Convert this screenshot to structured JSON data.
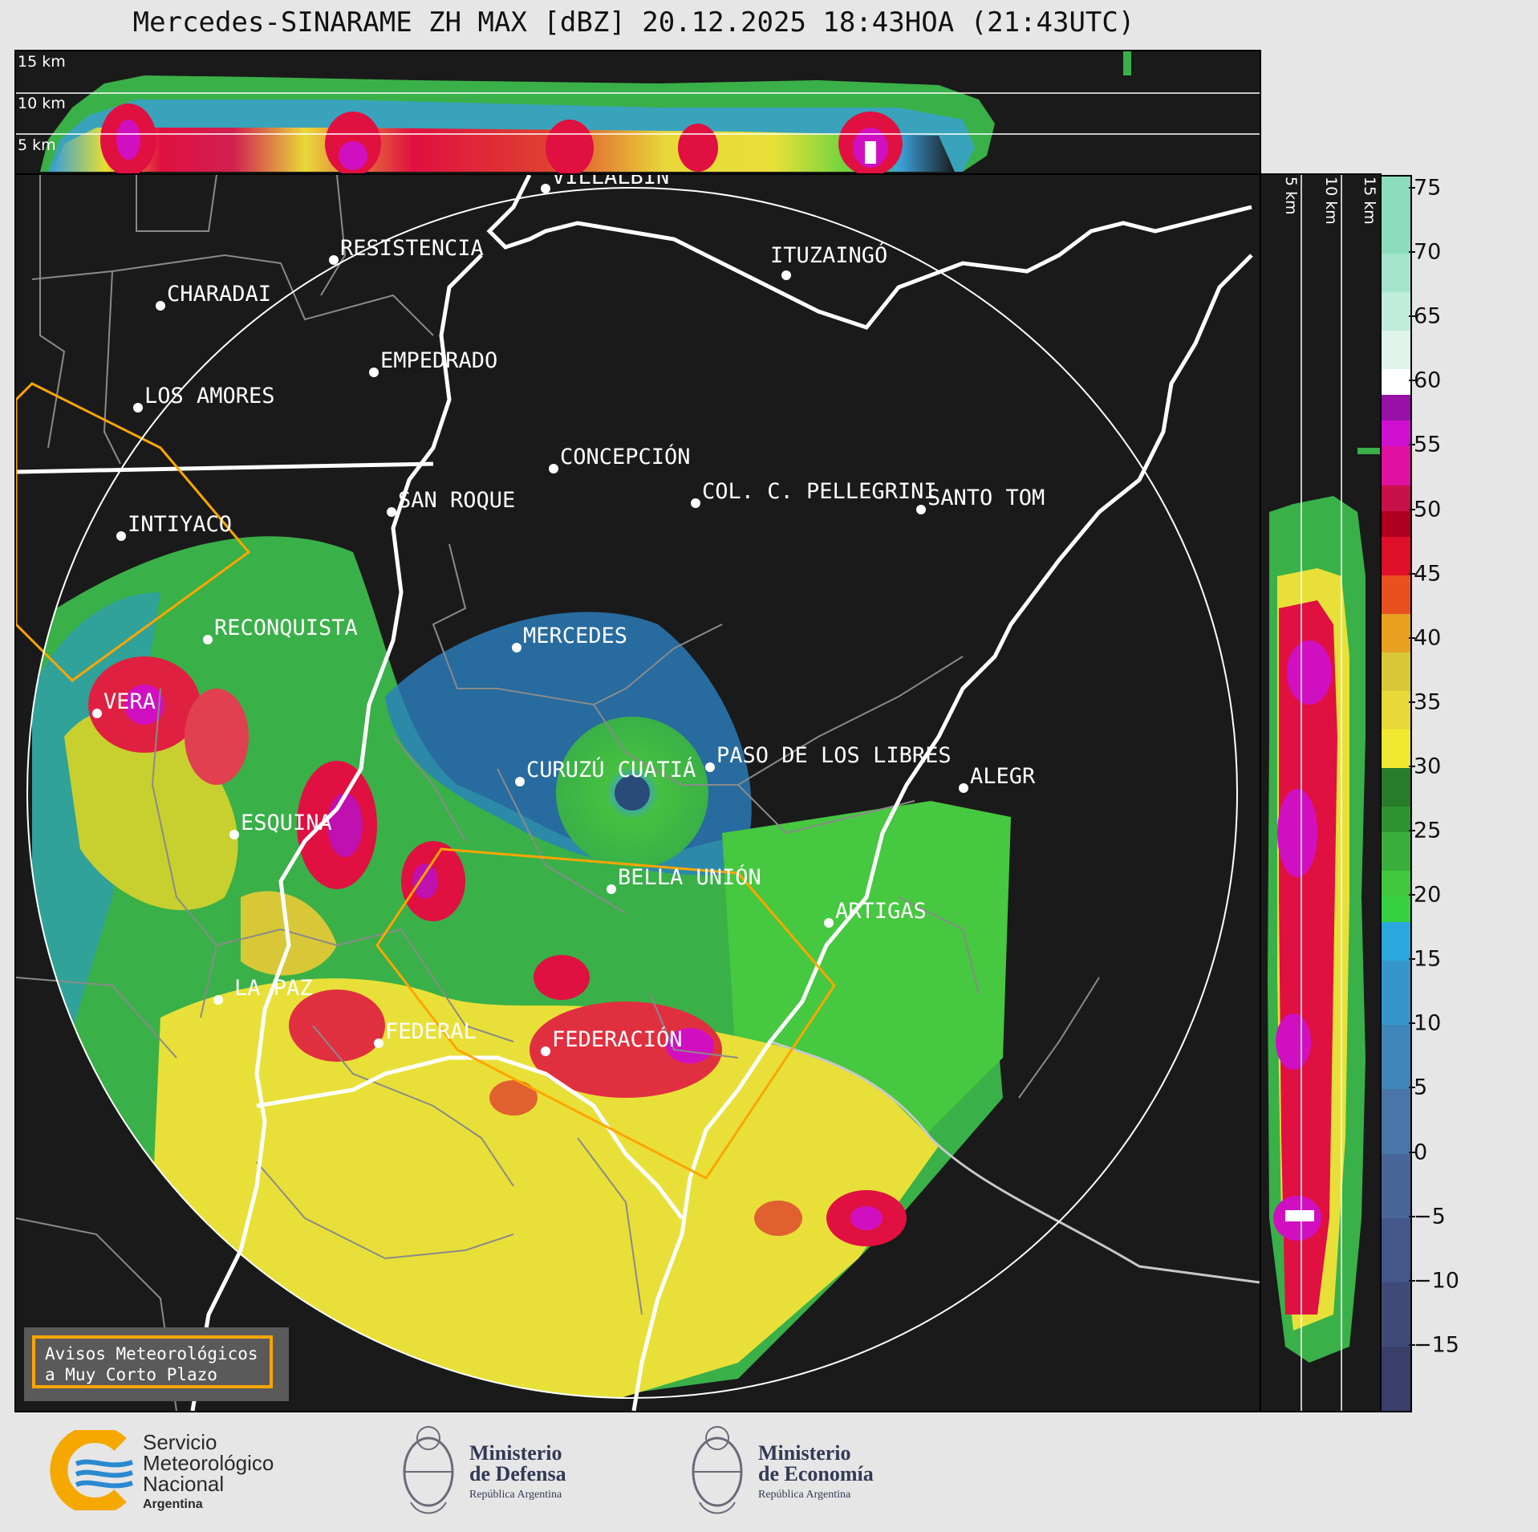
{
  "title": "Mercedes-SINARAME ZH MAX [dBZ] 20.12.2025 18:43HOA (21:43UTC)",
  "top_panel": {
    "height_labels": [
      "15 km",
      "10 km",
      "5 km"
    ]
  },
  "side_panel": {
    "height_labels": [
      "5 km",
      "10 km",
      "15 km"
    ]
  },
  "cities": [
    {
      "name": "VILLALBÍN"
    },
    {
      "name": "RESISTENCIA"
    },
    {
      "name": "CHARADAI"
    },
    {
      "name": "ITUZAINGÓ"
    },
    {
      "name": "EMPEDRADO"
    },
    {
      "name": "LOS AMORES"
    },
    {
      "name": "CONCEPCIÓN"
    },
    {
      "name": "SAN ROQUE"
    },
    {
      "name": "COL. C. PELLEGRINI"
    },
    {
      "name": "SANTO TOM"
    },
    {
      "name": "INTIYACO"
    },
    {
      "name": "MERCEDES"
    },
    {
      "name": "RECONQUISTA"
    },
    {
      "name": "VERA"
    },
    {
      "name": "PASO DE LOS LIBRES"
    },
    {
      "name": "CURUZÚ CUATIÁ"
    },
    {
      "name": "ALEGR"
    },
    {
      "name": "ESQUINA"
    },
    {
      "name": "BELLA UNIÓN"
    },
    {
      "name": "ARTIGAS"
    },
    {
      "name": "LA PAZ"
    },
    {
      "name": "FEDERAL"
    },
    {
      "name": "FEDERACIÓN"
    }
  ],
  "colorbar": {
    "ticks": [
      "75",
      "70",
      "65",
      "60",
      "55",
      "50",
      "45",
      "40",
      "35",
      "30",
      "25",
      "20",
      "15",
      "10",
      "5",
      "0",
      "−5",
      "−10",
      "−15"
    ],
    "range_dbz": [
      -20,
      76
    ]
  },
  "warning_box": {
    "line1": "Avisos Meteorológicos",
    "line2": "a Muy Corto Plazo"
  },
  "footer": {
    "smn": [
      "Servicio",
      "Meteorológico",
      "Nacional",
      "Argentina"
    ],
    "defensa": [
      "Ministerio",
      "de Defensa",
      "República Argentina"
    ],
    "economia": [
      "Ministerio",
      "de Economía",
      "República Argentina"
    ]
  }
}
